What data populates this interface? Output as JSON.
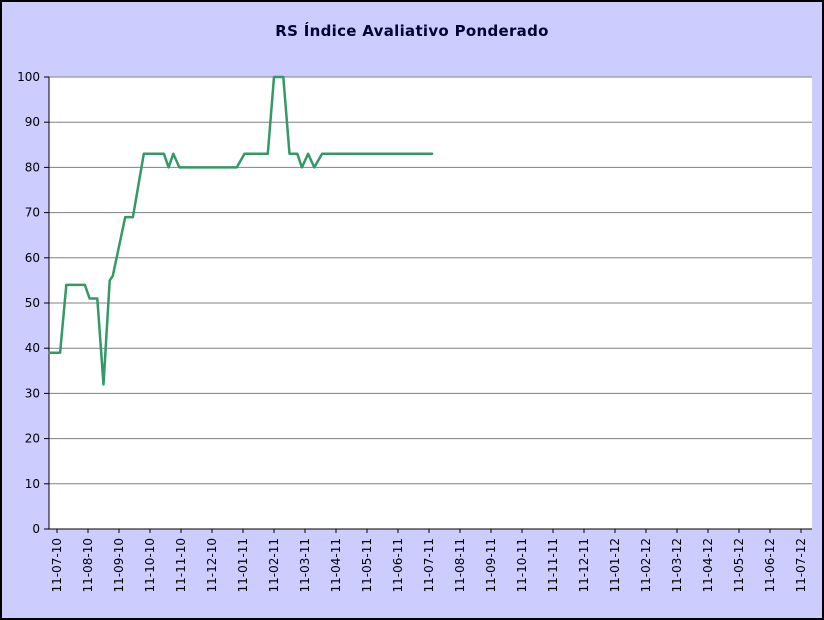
{
  "title": "RS Índice Avaliativo Ponderado",
  "colors": {
    "background": "#CCCCFF",
    "plot_background": "#FFFFFF",
    "line": "#339966",
    "grid": "#808080",
    "axis": "#000000",
    "title_text": "#000033",
    "label_text": "#000000"
  },
  "chart_data": {
    "type": "line",
    "title": "RS Índice Avaliativo Ponderado",
    "categories": [
      "11-07-10",
      "11-08-10",
      "11-09-10",
      "11-10-10",
      "11-11-10",
      "11-12-10",
      "11-01-11",
      "11-02-11",
      "11-03-11",
      "11-04-11",
      "11-05-11",
      "11-06-11",
      "11-07-11",
      "11-08-11",
      "11-09-11",
      "11-10-11",
      "11-11-11",
      "11-12-11",
      "11-01-12",
      "11-02-12",
      "11-03-12",
      "11-04-12",
      "11-05-12",
      "11-06-12",
      "11-07-12"
    ],
    "xlabel": "",
    "ylabel": "",
    "ylim": [
      0,
      100
    ],
    "ytick_step": 10,
    "grid": "horizontal",
    "legend": "none",
    "series": [
      {
        "name": "RS Índice Avaliativo Ponderado",
        "points": [
          [
            -0.25,
            39
          ],
          [
            0.1,
            39
          ],
          [
            0.3,
            54
          ],
          [
            0.9,
            54
          ],
          [
            1.05,
            51
          ],
          [
            1.3,
            51
          ],
          [
            1.5,
            32
          ],
          [
            1.7,
            55
          ],
          [
            1.8,
            56
          ],
          [
            2.2,
            69
          ],
          [
            2.45,
            69
          ],
          [
            2.8,
            83
          ],
          [
            3.45,
            83
          ],
          [
            3.6,
            80
          ],
          [
            3.75,
            83
          ],
          [
            3.95,
            80
          ],
          [
            5.8,
            80
          ],
          [
            6.05,
            83
          ],
          [
            6.8,
            83
          ],
          [
            7.0,
            100
          ],
          [
            7.3,
            100
          ],
          [
            7.5,
            83
          ],
          [
            7.75,
            83
          ],
          [
            7.9,
            80
          ],
          [
            8.1,
            83
          ],
          [
            8.3,
            80
          ],
          [
            8.55,
            83
          ],
          [
            12.1,
            83
          ]
        ]
      }
    ]
  }
}
